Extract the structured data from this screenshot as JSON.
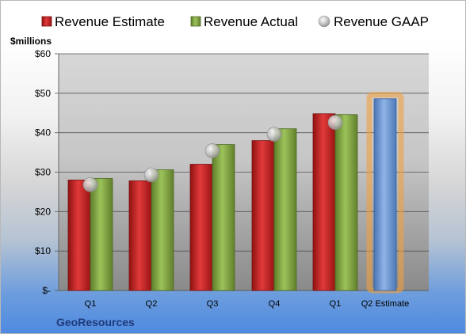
{
  "chart_data": {
    "type": "bar",
    "unit_label": "$millions",
    "brand": "GeoResources",
    "categories": [
      "Q1",
      "Q2",
      "Q3",
      "Q4",
      "Q1",
      "Q2 Estimate"
    ],
    "y_ticks": [
      "$-",
      "$10",
      "$20",
      "$30",
      "$40",
      "$50",
      "$60"
    ],
    "ylim": [
      0,
      60
    ],
    "grid": true,
    "legend_position": "top",
    "series": [
      {
        "name": "Revenue Estimate",
        "kind": "bar",
        "color": "#d42a2a",
        "values": [
          28,
          27.8,
          32,
          38,
          44.8,
          null
        ]
      },
      {
        "name": "Revenue Actual",
        "kind": "bar",
        "color": "#8db14a",
        "values": [
          28.4,
          30.6,
          37,
          41,
          44.6,
          null
        ]
      },
      {
        "name": "Revenue GAAP",
        "kind": "marker",
        "color": "#b8b8b8",
        "values": [
          26.8,
          29.3,
          35.4,
          39.6,
          42.6,
          null
        ]
      },
      {
        "name": "Q2 Estimate",
        "kind": "bar",
        "color": "#6f9ad6",
        "highlight": "#f0a040",
        "values": [
          null,
          null,
          null,
          null,
          null,
          48.6
        ]
      }
    ]
  }
}
